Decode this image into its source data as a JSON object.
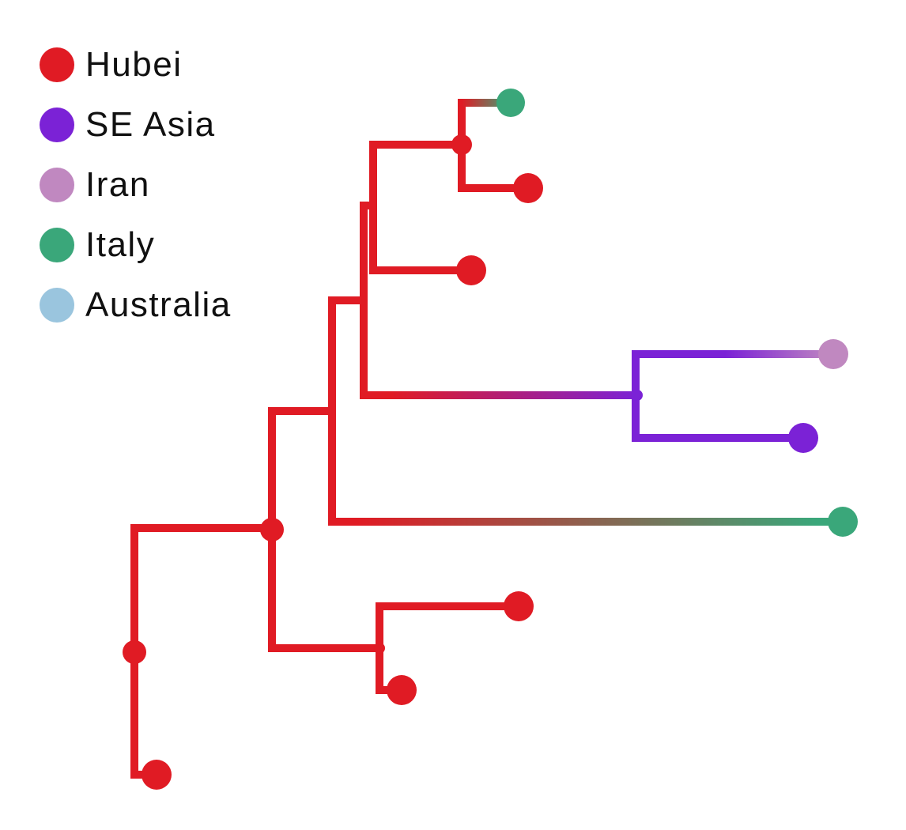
{
  "legend": {
    "items": [
      {
        "label": "Hubei",
        "color": "#e01b24"
      },
      {
        "label": "SE Asia",
        "color": "#7b22d6"
      },
      {
        "label": "Iran",
        "color": "#c088c0"
      },
      {
        "label": "Italy",
        "color": "#3aa77a"
      },
      {
        "label": "Australia",
        "color": "#9ac5de"
      }
    ]
  },
  "tree": {
    "branch_color": "#e01b24",
    "leaves": [
      {
        "region": "Italy",
        "color": "#3aa77a"
      },
      {
        "region": "Hubei",
        "color": "#e01b24"
      },
      {
        "region": "Hubei",
        "color": "#e01b24"
      },
      {
        "region": "Iran",
        "color": "#c088c0"
      },
      {
        "region": "SE Asia",
        "color": "#7b22d6"
      },
      {
        "region": "Italy",
        "color": "#3aa77a"
      },
      {
        "region": "Hubei",
        "color": "#e01b24"
      },
      {
        "region": "Hubei",
        "color": "#e01b24"
      },
      {
        "region": "Hubei",
        "color": "#e01b24"
      }
    ]
  }
}
